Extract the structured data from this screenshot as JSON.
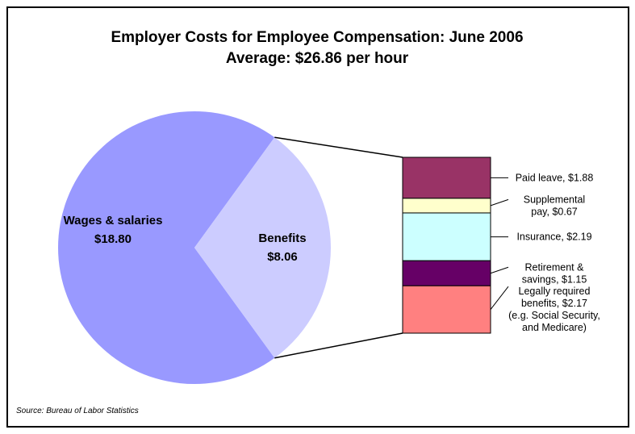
{
  "chart_data": {
    "type": "bar-of-pie",
    "title": "Employer Costs for Employee Compensation: June 2006",
    "subtitle": "Average: $26.86 per hour",
    "source": "Source: Bureau of Labor Statistics",
    "pie": {
      "slices": [
        {
          "label_line1": "Wages & salaries",
          "label_line2": "$18.80",
          "value": 18.8,
          "color": "#9999ff"
        },
        {
          "label_line1": "Benefits",
          "label_line2": "$8.06",
          "value": 8.06,
          "color": "#ccccff"
        }
      ]
    },
    "breakdown": {
      "segments": [
        {
          "lines": [
            "Paid leave, $1.88"
          ],
          "value": 1.88,
          "color": "#993366"
        },
        {
          "lines": [
            "Supplemental",
            "pay, $0.67"
          ],
          "value": 0.67,
          "color": "#ffffcc"
        },
        {
          "lines": [
            "Insurance, $2.19"
          ],
          "value": 2.19,
          "color": "#ccffff"
        },
        {
          "lines": [
            "Retirement &",
            "savings, $1.15"
          ],
          "value": 1.15,
          "color": "#660066"
        },
        {
          "lines": [
            "Legally required",
            "benefits, $2.17",
            "(e.g. Social Security,",
            "and Medicare)"
          ],
          "value": 2.17,
          "color": "#ff8080"
        }
      ]
    }
  }
}
